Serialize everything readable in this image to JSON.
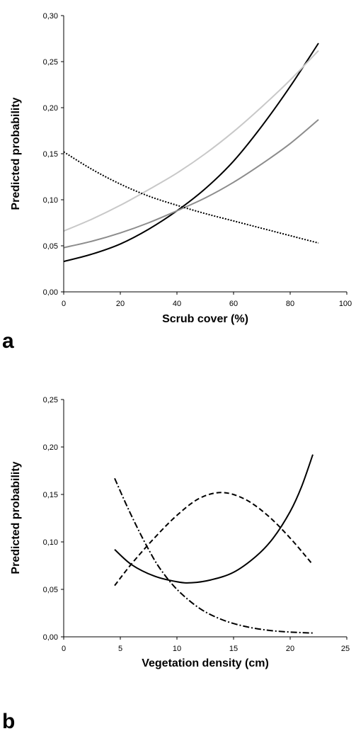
{
  "chart_data": [
    {
      "type": "line",
      "panel_label": "a",
      "xlabel": "Scrub cover (%)",
      "ylabel": "Predicted probability",
      "xlim": [
        0,
        100
      ],
      "ylim": [
        0,
        0.3
      ],
      "xticks": [
        "0",
        "20",
        "40",
        "60",
        "80",
        "100"
      ],
      "yticks": [
        "0,00",
        "0,05",
        "0,10",
        "0,15",
        "0,20",
        "0,25",
        "0,30"
      ],
      "grid": false,
      "legend": "none",
      "series": [
        {
          "style": "solid",
          "color": "#000000",
          "x": [
            0,
            10,
            20,
            30,
            40,
            50,
            60,
            70,
            80,
            90
          ],
          "y": [
            0.033,
            0.041,
            0.052,
            0.068,
            0.088,
            0.112,
            0.142,
            0.18,
            0.223,
            0.27
          ]
        },
        {
          "style": "solid",
          "color": "#8c8c8c",
          "x": [
            0,
            10,
            20,
            30,
            40,
            50,
            60,
            70,
            80,
            90
          ],
          "y": [
            0.048,
            0.055,
            0.064,
            0.075,
            0.088,
            0.102,
            0.119,
            0.139,
            0.161,
            0.187
          ]
        },
        {
          "style": "solid",
          "color": "#c8c8c8",
          "x": [
            0,
            10,
            20,
            30,
            40,
            50,
            60,
            70,
            80,
            90
          ],
          "y": [
            0.066,
            0.079,
            0.094,
            0.111,
            0.129,
            0.15,
            0.174,
            0.201,
            0.23,
            0.262
          ]
        },
        {
          "style": "dotted",
          "color": "#000000",
          "x": [
            0,
            10,
            20,
            30,
            40,
            50,
            60,
            70,
            80,
            90
          ],
          "y": [
            0.152,
            0.133,
            0.117,
            0.104,
            0.094,
            0.085,
            0.077,
            0.069,
            0.061,
            0.053
          ]
        }
      ]
    },
    {
      "type": "line",
      "panel_label": "b",
      "xlabel": "Vegetation density (cm)",
      "ylabel": "Predicted probability",
      "xlim": [
        0,
        25
      ],
      "ylim": [
        0,
        0.25
      ],
      "xticks": [
        "0",
        "5",
        "10",
        "15",
        "20",
        "25"
      ],
      "yticks": [
        "0,00",
        "0,05",
        "0,10",
        "0,15",
        "0,20",
        "0,25"
      ],
      "grid": false,
      "legend": "none",
      "series": [
        {
          "style": "solid",
          "color": "#000000",
          "x": [
            4.5,
            6,
            8,
            10,
            11.3,
            13,
            15,
            17,
            18.5,
            20,
            21,
            22
          ],
          "y": [
            0.092,
            0.076,
            0.064,
            0.058,
            0.057,
            0.06,
            0.068,
            0.085,
            0.104,
            0.132,
            0.158,
            0.192
          ]
        },
        {
          "style": "dashed",
          "color": "#000000",
          "x": [
            4.5,
            6,
            8,
            10,
            12,
            14,
            16,
            18,
            20,
            22
          ],
          "y": [
            0.054,
            0.077,
            0.104,
            0.128,
            0.146,
            0.152,
            0.145,
            0.128,
            0.104,
            0.076
          ]
        },
        {
          "style": "dashdot",
          "color": "#000000",
          "x": [
            4.5,
            5.5,
            6.5,
            7.5,
            8.5,
            10,
            12,
            14,
            16,
            18,
            20,
            22
          ],
          "y": [
            0.167,
            0.14,
            0.115,
            0.092,
            0.072,
            0.05,
            0.03,
            0.018,
            0.011,
            0.007,
            0.005,
            0.004
          ]
        }
      ]
    }
  ]
}
